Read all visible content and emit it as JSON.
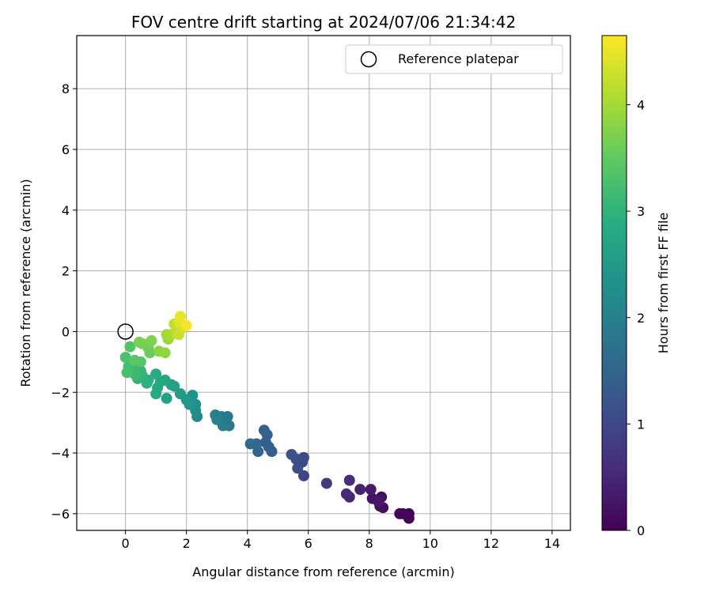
{
  "chart_data": {
    "type": "scatter",
    "title": "FOV centre drift starting at 2024/07/06 21:34:42",
    "xlabel": "Angular distance from reference (arcmin)",
    "ylabel": "Rotation from reference (arcmin)",
    "xlim": [
      -1.6,
      14.6
    ],
    "ylim": [
      -6.55,
      9.75
    ],
    "xticks": [
      "0",
      "2",
      "4",
      "6",
      "8",
      "10",
      "12",
      "14"
    ],
    "xtick_values": [
      0,
      2,
      4,
      6,
      8,
      10,
      12,
      14
    ],
    "yticks": [
      "−6",
      "−4",
      "−2",
      "0",
      "2",
      "4",
      "6",
      "8"
    ],
    "ytick_values": [
      -6,
      -4,
      -2,
      0,
      2,
      4,
      6,
      8
    ],
    "grid": true,
    "legend": {
      "position": "top-right",
      "entries": [
        "Reference platepar"
      ]
    },
    "reference_point": {
      "x": 0,
      "y": 0
    },
    "colorbar": {
      "label": "Hours from first FF file",
      "range": [
        0,
        4.65
      ],
      "ticks": [
        "0",
        "1",
        "2",
        "3",
        "4"
      ],
      "tick_values": [
        0,
        1,
        2,
        3,
        4
      ],
      "colormap": "viridis"
    },
    "series": [
      {
        "points": [
          {
            "x": 9.3,
            "y": -6.15,
            "t": 0.0
          },
          {
            "x": 9.3,
            "y": -6.0,
            "t": 0.03
          },
          {
            "x": 9.0,
            "y": -6.0,
            "t": 0.05
          },
          {
            "x": 9.1,
            "y": -6.0,
            "t": 0.08
          },
          {
            "x": 8.45,
            "y": -5.8,
            "t": 0.15
          },
          {
            "x": 8.35,
            "y": -5.75,
            "t": 0.18
          },
          {
            "x": 8.4,
            "y": -5.45,
            "t": 0.22
          },
          {
            "x": 8.1,
            "y": -5.5,
            "t": 0.26
          },
          {
            "x": 8.3,
            "y": -5.6,
            "t": 0.3
          },
          {
            "x": 8.05,
            "y": -5.2,
            "t": 0.34
          },
          {
            "x": 7.7,
            "y": -5.2,
            "t": 0.42
          },
          {
            "x": 7.35,
            "y": -5.45,
            "t": 0.5
          },
          {
            "x": 7.25,
            "y": -5.35,
            "t": 0.55
          },
          {
            "x": 7.35,
            "y": -4.9,
            "t": 0.6
          },
          {
            "x": 6.6,
            "y": -5.0,
            "t": 0.75
          },
          {
            "x": 5.85,
            "y": -4.75,
            "t": 0.95
          },
          {
            "x": 5.8,
            "y": -4.3,
            "t": 1.0
          },
          {
            "x": 5.85,
            "y": -4.15,
            "t": 1.03
          },
          {
            "x": 5.65,
            "y": -4.5,
            "t": 1.08
          },
          {
            "x": 5.6,
            "y": -4.2,
            "t": 1.12
          },
          {
            "x": 5.45,
            "y": -4.05,
            "t": 1.18
          },
          {
            "x": 4.8,
            "y": -3.95,
            "t": 1.35
          },
          {
            "x": 4.7,
            "y": -3.8,
            "t": 1.38
          },
          {
            "x": 4.6,
            "y": -3.65,
            "t": 1.42
          },
          {
            "x": 4.65,
            "y": -3.4,
            "t": 1.45
          },
          {
            "x": 4.55,
            "y": -3.25,
            "t": 1.48
          },
          {
            "x": 4.35,
            "y": -3.95,
            "t": 1.55
          },
          {
            "x": 4.3,
            "y": -3.7,
            "t": 1.58
          },
          {
            "x": 4.1,
            "y": -3.7,
            "t": 1.62
          },
          {
            "x": 3.4,
            "y": -3.1,
            "t": 1.85
          },
          {
            "x": 3.35,
            "y": -2.8,
            "t": 1.88
          },
          {
            "x": 3.2,
            "y": -3.1,
            "t": 1.92
          },
          {
            "x": 3.15,
            "y": -2.8,
            "t": 1.95
          },
          {
            "x": 3.0,
            "y": -2.9,
            "t": 1.98
          },
          {
            "x": 2.95,
            "y": -2.75,
            "t": 2.02
          },
          {
            "x": 2.35,
            "y": -2.8,
            "t": 2.2
          },
          {
            "x": 2.3,
            "y": -2.6,
            "t": 2.25
          },
          {
            "x": 2.3,
            "y": -2.4,
            "t": 2.3
          },
          {
            "x": 2.2,
            "y": -2.1,
            "t": 2.35
          },
          {
            "x": 2.1,
            "y": -2.4,
            "t": 2.4
          },
          {
            "x": 2.0,
            "y": -2.25,
            "t": 2.45
          },
          {
            "x": 1.8,
            "y": -2.05,
            "t": 2.52
          },
          {
            "x": 1.6,
            "y": -1.8,
            "t": 2.58
          },
          {
            "x": 1.5,
            "y": -1.75,
            "t": 2.62
          },
          {
            "x": 1.35,
            "y": -2.2,
            "t": 2.66
          },
          {
            "x": 1.3,
            "y": -1.6,
            "t": 2.7
          },
          {
            "x": 1.15,
            "y": -1.65,
            "t": 2.74
          },
          {
            "x": 1.05,
            "y": -1.85,
            "t": 2.78
          },
          {
            "x": 1.0,
            "y": -2.05,
            "t": 2.82
          },
          {
            "x": 1.0,
            "y": -1.4,
            "t": 2.86
          },
          {
            "x": 0.75,
            "y": -1.6,
            "t": 2.9
          },
          {
            "x": 0.7,
            "y": -1.7,
            "t": 2.94
          },
          {
            "x": 0.55,
            "y": -1.45,
            "t": 2.98
          },
          {
            "x": 0.4,
            "y": -1.55,
            "t": 3.02
          },
          {
            "x": 0.5,
            "y": -1.3,
            "t": 3.06
          },
          {
            "x": 0.35,
            "y": -1.25,
            "t": 3.1
          },
          {
            "x": 0.3,
            "y": -1.4,
            "t": 3.14
          },
          {
            "x": 0.2,
            "y": -1.0,
            "t": 3.18
          },
          {
            "x": 0.1,
            "y": -1.15,
            "t": 3.22
          },
          {
            "x": 0.05,
            "y": -1.35,
            "t": 3.26
          },
          {
            "x": 0.0,
            "y": -0.85,
            "t": 3.3
          },
          {
            "x": 0.15,
            "y": -0.5,
            "t": 3.36
          },
          {
            "x": 0.5,
            "y": -1.0,
            "t": 3.4
          },
          {
            "x": 0.3,
            "y": -0.95,
            "t": 3.43
          },
          {
            "x": 0.8,
            "y": -0.7,
            "t": 3.55
          },
          {
            "x": 0.75,
            "y": -0.55,
            "t": 3.6
          },
          {
            "x": 0.55,
            "y": -0.4,
            "t": 3.65
          },
          {
            "x": 0.45,
            "y": -0.35,
            "t": 3.68
          },
          {
            "x": 0.85,
            "y": -0.3,
            "t": 3.72
          },
          {
            "x": 1.1,
            "y": -0.65,
            "t": 3.8
          },
          {
            "x": 1.3,
            "y": -0.7,
            "t": 3.85
          },
          {
            "x": 1.4,
            "y": -0.25,
            "t": 3.92
          },
          {
            "x": 1.35,
            "y": -0.1,
            "t": 3.98
          },
          {
            "x": 1.5,
            "y": -0.1,
            "t": 4.05
          },
          {
            "x": 1.65,
            "y": -0.05,
            "t": 4.12
          },
          {
            "x": 1.6,
            "y": 0.25,
            "t": 4.2
          },
          {
            "x": 1.75,
            "y": -0.1,
            "t": 4.28
          },
          {
            "x": 1.85,
            "y": 0.1,
            "t": 4.35
          },
          {
            "x": 1.75,
            "y": 0.3,
            "t": 4.45
          },
          {
            "x": 1.8,
            "y": 0.5,
            "t": 4.52
          },
          {
            "x": 2.0,
            "y": 0.2,
            "t": 4.6
          }
        ]
      }
    ]
  }
}
